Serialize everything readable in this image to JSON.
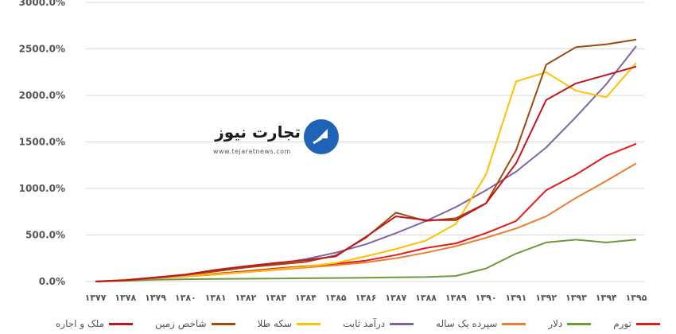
{
  "logo": {
    "word": "تجارت نیوز",
    "url": "www.tejaratnews.com"
  },
  "chart_data": {
    "type": "line",
    "title": "",
    "xlabel": "",
    "ylabel": "",
    "ylim": [
      0,
      3000
    ],
    "yticks": [
      0,
      500,
      1000,
      1500,
      2000,
      2500,
      3000
    ],
    "ytick_labels": [
      "0.0%",
      "500.0%",
      "1000.0%",
      "1500.0%",
      "2000.0%",
      "2500.0%",
      "3000.0%"
    ],
    "grid": true,
    "legend_position": "bottom",
    "categories": [
      "۱۳۷۷",
      "۱۳۷۸",
      "۱۳۷۹",
      "۱۳۸۰",
      "۱۳۸۱",
      "۱۳۸۲",
      "۱۳۸۳",
      "۱۳۸۴",
      "۱۳۸۵",
      "۱۳۸۶",
      "۱۳۸۷",
      "۱۳۸۸",
      "۱۳۸۹",
      "۱۳۹۰",
      "۱۳۹۱",
      "۱۳۹۲",
      "۱۳۹۳",
      "۱۳۹۴",
      "۱۳۹۵"
    ],
    "series": [
      {
        "name": "تورم",
        "color": "#e31b1b",
        "values": [
          0,
          15,
          40,
          60,
          85,
          110,
          140,
          165,
          190,
          225,
          285,
          360,
          410,
          520,
          650,
          980,
          1150,
          1350,
          1480
        ]
      },
      {
        "name": "دلار",
        "color": "#6f9a3c",
        "values": [
          0,
          8,
          20,
          25,
          28,
          30,
          32,
          35,
          38,
          40,
          45,
          48,
          60,
          140,
          300,
          420,
          450,
          420,
          450
        ]
      },
      {
        "name": "سپرده یک ساله",
        "color": "#ed7d31",
        "values": [
          0,
          15,
          35,
          55,
          75,
          100,
          125,
          150,
          175,
          205,
          250,
          310,
          380,
          470,
          570,
          700,
          900,
          1080,
          1270
        ]
      },
      {
        "name": "درآمد ثابت",
        "color": "#8064a2",
        "values": [
          0,
          15,
          40,
          70,
          110,
          150,
          190,
          240,
          310,
          400,
          520,
          650,
          800,
          980,
          1180,
          1440,
          1770,
          2120,
          2530
        ]
      },
      {
        "name": "سکه طلا",
        "color": "#ffc000",
        "values": [
          0,
          20,
          40,
          60,
          80,
          100,
          130,
          160,
          200,
          270,
          350,
          440,
          620,
          1150,
          2150,
          2250,
          2050,
          1980,
          2350
        ]
      },
      {
        "name": "شاخص زمین",
        "color": "#9c4a0e",
        "values": [
          0,
          12,
          40,
          70,
          110,
          150,
          180,
          210,
          280,
          470,
          740,
          650,
          680,
          840,
          1410,
          2330,
          2520,
          2550,
          2600
        ]
      },
      {
        "name": "ملک و اجاره",
        "color": "#c0161b",
        "values": [
          0,
          15,
          45,
          75,
          125,
          165,
          200,
          230,
          270,
          480,
          700,
          660,
          660,
          840,
          1270,
          1950,
          2130,
          2220,
          2310
        ]
      }
    ]
  }
}
